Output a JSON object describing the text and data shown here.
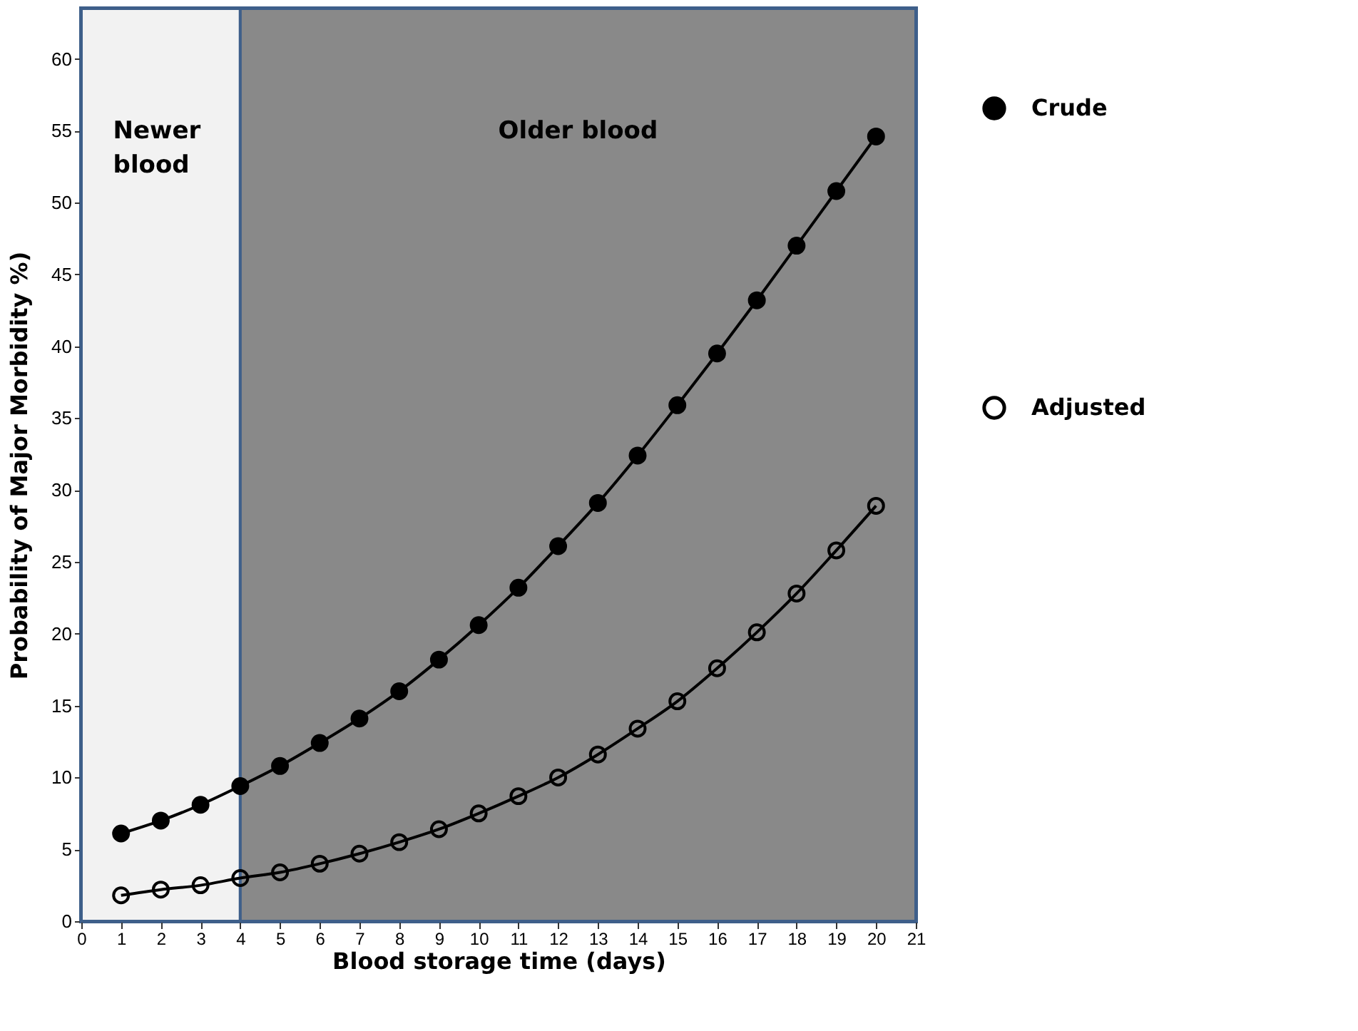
{
  "chart_data": {
    "type": "line",
    "xlabel": "Blood storage time (days)",
    "ylabel": "Probability of Major Morbidity  %)",
    "x": [
      1,
      2,
      3,
      4,
      5,
      6,
      7,
      8,
      9,
      10,
      11,
      12,
      13,
      14,
      15,
      16,
      17,
      18,
      19,
      20
    ],
    "series": [
      {
        "name": "Crude",
        "color": "#000000",
        "values": [
          6.1,
          7.0,
          8.1,
          9.4,
          10.8,
          12.4,
          14.1,
          16.0,
          18.2,
          20.6,
          23.2,
          26.1,
          29.1,
          32.4,
          35.9,
          39.5,
          43.2,
          47.0,
          50.8,
          54.6
        ]
      },
      {
        "name": "Adjusted",
        "color": "#000000",
        "values": [
          1.8,
          2.2,
          2.5,
          3.0,
          3.4,
          4.0,
          4.7,
          5.5,
          6.4,
          7.5,
          8.7,
          10.0,
          11.6,
          13.4,
          15.3,
          17.6,
          20.1,
          22.8,
          25.8,
          28.9
        ]
      }
    ],
    "xlim": [
      0,
      21
    ],
    "xticks": [
      0,
      1,
      2,
      3,
      4,
      5,
      6,
      7,
      8,
      9,
      10,
      11,
      12,
      13,
      14,
      15,
      16,
      17,
      18,
      19,
      20,
      21
    ],
    "ylim": [
      0,
      63.5
    ],
    "yticks": [
      0,
      5,
      10,
      15,
      20,
      25,
      30,
      35,
      40,
      45,
      50,
      55,
      60
    ],
    "bands": [
      {
        "axis": "x",
        "from": 0,
        "to": 4,
        "label": "Newer blood",
        "color": "#f2f2f2"
      },
      {
        "axis": "x",
        "from": 4,
        "to": 21,
        "label": "Older blood",
        "color": "#898989"
      }
    ],
    "marker": "circle",
    "line_style": "solid",
    "legend": "right"
  }
}
